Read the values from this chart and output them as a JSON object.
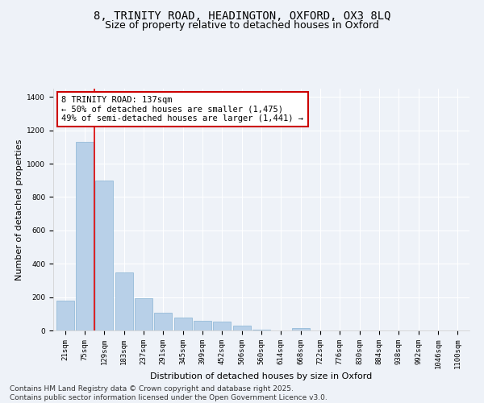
{
  "title_line1": "8, TRINITY ROAD, HEADINGTON, OXFORD, OX3 8LQ",
  "title_line2": "Size of property relative to detached houses in Oxford",
  "xlabel": "Distribution of detached houses by size in Oxford",
  "ylabel": "Number of detached properties",
  "categories": [
    "21sqm",
    "75sqm",
    "129sqm",
    "183sqm",
    "237sqm",
    "291sqm",
    "345sqm",
    "399sqm",
    "452sqm",
    "506sqm",
    "560sqm",
    "614sqm",
    "668sqm",
    "722sqm",
    "776sqm",
    "830sqm",
    "884sqm",
    "938sqm",
    "992sqm",
    "1046sqm",
    "1100sqm"
  ],
  "values": [
    178,
    1130,
    900,
    350,
    195,
    105,
    75,
    60,
    55,
    28,
    5,
    0,
    14,
    0,
    0,
    0,
    0,
    0,
    0,
    0,
    0
  ],
  "bar_color": "#b8d0e8",
  "bar_edge_color": "#8ab4d4",
  "red_line_index": 2,
  "red_line_color": "#dd0000",
  "annotation_line1": "8 TRINITY ROAD: 137sqm",
  "annotation_line2": "← 50% of detached houses are smaller (1,475)",
  "annotation_line3": "49% of semi-detached houses are larger (1,441) →",
  "annotation_box_color": "#cc0000",
  "annotation_box_fill": "#ffffff",
  "background_color": "#eef2f8",
  "ylim": [
    0,
    1450
  ],
  "yticks": [
    0,
    200,
    400,
    600,
    800,
    1000,
    1200,
    1400
  ],
  "footer_line1": "Contains HM Land Registry data © Crown copyright and database right 2025.",
  "footer_line2": "Contains public sector information licensed under the Open Government Licence v3.0.",
  "grid_color": "#ffffff",
  "title_fontsize": 10,
  "subtitle_fontsize": 9,
  "axis_label_fontsize": 8,
  "tick_fontsize": 6.5,
  "annotation_fontsize": 7.5,
  "footer_fontsize": 6.5
}
